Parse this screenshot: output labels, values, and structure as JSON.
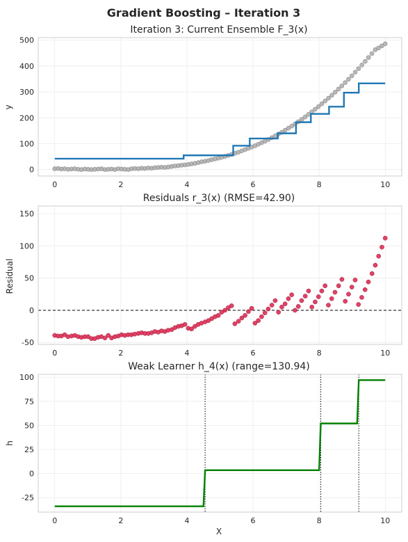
{
  "figure": {
    "suptitle": "Gradient Boosting – Iteration 3"
  },
  "chart_data": [
    {
      "type": "line",
      "title": "Iteration 3: Current Ensemble F_3(x)",
      "xlabel": "",
      "ylabel": "y",
      "xlim": [
        -0.5,
        10.5
      ],
      "ylim": [
        -25,
        510
      ],
      "xticks": [
        0,
        2,
        4,
        6,
        8,
        10
      ],
      "yticks": [
        0,
        100,
        200,
        300,
        400,
        500
      ],
      "grid": true,
      "legend": "none",
      "colors": {
        "points": "#a6a6a6",
        "line": "#1f77b4"
      },
      "data_points": {
        "x_start": 0,
        "x_end": 10,
        "count": 100,
        "y": [
          3,
          4,
          2,
          3,
          1,
          2,
          3,
          1,
          0,
          2,
          1,
          0,
          1,
          2,
          3,
          0,
          1,
          2,
          0,
          3,
          2,
          1,
          0,
          3,
          4,
          3,
          5,
          4,
          6,
          5,
          7,
          8,
          9,
          8,
          10,
          12,
          14,
          15,
          17,
          18,
          20,
          22,
          24,
          27,
          30,
          32,
          35,
          38,
          41,
          44,
          47,
          51,
          55,
          59,
          63,
          67,
          72,
          77,
          82,
          87,
          92,
          98,
          104,
          110,
          116,
          123,
          130,
          137,
          144,
          152,
          160,
          168,
          176,
          185,
          194,
          203,
          213,
          223,
          233,
          243,
          254,
          265,
          276,
          287,
          299,
          311,
          323,
          336,
          349,
          362,
          376,
          390,
          404,
          418,
          433,
          448,
          463,
          470,
          478,
          486
        ]
      },
      "series": [
        {
          "steps": [
            [
              0,
              42
            ],
            [
              3.9,
              42
            ],
            [
              3.9,
              55
            ],
            [
              5.4,
              55
            ],
            [
              5.4,
              92
            ],
            [
              5.9,
              92
            ],
            [
              5.9,
              120
            ],
            [
              6.75,
              120
            ],
            [
              6.75,
              140
            ],
            [
              7.3,
              140
            ],
            [
              7.3,
              183
            ],
            [
              7.75,
              183
            ],
            [
              7.75,
              215
            ],
            [
              8.3,
              215
            ],
            [
              8.3,
              243
            ],
            [
              8.75,
              243
            ],
            [
              8.75,
              297
            ],
            [
              9.2,
              297
            ],
            [
              9.2,
              333
            ],
            [
              10,
              333
            ]
          ]
        }
      ]
    },
    {
      "type": "scatter",
      "title": "Residuals r_3(x)  (RMSE=42.90)",
      "xlabel": "",
      "ylabel": "Residual",
      "xlim": [
        -0.5,
        10.5
      ],
      "ylim": [
        -53,
        162
      ],
      "xticks": [
        0,
        2,
        4,
        6,
        8,
        10
      ],
      "yticks": [
        -50,
        0,
        50,
        100,
        150
      ],
      "grid": true,
      "reference_line": 0,
      "colors": {
        "points": "#dc2e55",
        "reference": "#000000"
      },
      "points": [
        [
          0.0,
          -39
        ],
        [
          0.1,
          -40
        ],
        [
          0.2,
          -40
        ],
        [
          0.3,
          -38
        ],
        [
          0.4,
          -41
        ],
        [
          0.51,
          -40
        ],
        [
          0.61,
          -39
        ],
        [
          0.71,
          -41
        ],
        [
          0.81,
          -42
        ],
        [
          0.91,
          -41
        ],
        [
          1.01,
          -41
        ],
        [
          1.11,
          -44
        ],
        [
          1.21,
          -44
        ],
        [
          1.31,
          -42
        ],
        [
          1.41,
          -41
        ],
        [
          1.52,
          -43
        ],
        [
          1.62,
          -39
        ],
        [
          1.72,
          -43
        ],
        [
          1.82,
          -41
        ],
        [
          1.92,
          -40
        ],
        [
          2.02,
          -38
        ],
        [
          2.12,
          -39
        ],
        [
          2.22,
          -38
        ],
        [
          2.32,
          -38
        ],
        [
          2.42,
          -37
        ],
        [
          2.53,
          -36
        ],
        [
          2.63,
          -35
        ],
        [
          2.73,
          -36
        ],
        [
          2.83,
          -36
        ],
        [
          2.93,
          -35
        ],
        [
          3.03,
          -33
        ],
        [
          3.13,
          -34
        ],
        [
          3.23,
          -32
        ],
        [
          3.33,
          -33
        ],
        [
          3.43,
          -31
        ],
        [
          3.54,
          -30
        ],
        [
          3.64,
          -27
        ],
        [
          3.74,
          -25
        ],
        [
          3.84,
          -24
        ],
        [
          3.94,
          -22
        ],
        [
          4.04,
          -28
        ],
        [
          4.14,
          -29
        ],
        [
          4.24,
          -25
        ],
        [
          4.34,
          -22
        ],
        [
          4.44,
          -20
        ],
        [
          4.55,
          -18
        ],
        [
          4.65,
          -16
        ],
        [
          4.75,
          -13
        ],
        [
          4.85,
          -10
        ],
        [
          4.95,
          -8
        ],
        [
          5.05,
          -3
        ],
        [
          5.15,
          0
        ],
        [
          5.25,
          4
        ],
        [
          5.35,
          7
        ],
        [
          5.45,
          -21
        ],
        [
          5.56,
          -17
        ],
        [
          5.66,
          -12
        ],
        [
          5.76,
          -8
        ],
        [
          5.86,
          -2
        ],
        [
          5.96,
          3
        ],
        [
          6.06,
          -20
        ],
        [
          6.16,
          -16
        ],
        [
          6.26,
          -10
        ],
        [
          6.36,
          -4
        ],
        [
          6.46,
          2
        ],
        [
          6.57,
          8
        ],
        [
          6.67,
          15
        ],
        [
          6.77,
          -3
        ],
        [
          6.87,
          5
        ],
        [
          6.97,
          10
        ],
        [
          7.07,
          18
        ],
        [
          7.17,
          24
        ],
        [
          7.27,
          0
        ],
        [
          7.37,
          6
        ],
        [
          7.47,
          15
        ],
        [
          7.58,
          22
        ],
        [
          7.68,
          30
        ],
        [
          7.78,
          5
        ],
        [
          7.88,
          13
        ],
        [
          7.98,
          21
        ],
        [
          8.08,
          30
        ],
        [
          8.18,
          38
        ],
        [
          8.28,
          8
        ],
        [
          8.38,
          18
        ],
        [
          8.48,
          28
        ],
        [
          8.59,
          38
        ],
        [
          8.69,
          48
        ],
        [
          8.79,
          14
        ],
        [
          8.89,
          25
        ],
        [
          8.99,
          36
        ],
        [
          9.09,
          47
        ],
        [
          9.19,
          9
        ],
        [
          9.29,
          20
        ],
        [
          9.39,
          32
        ],
        [
          9.49,
          44
        ],
        [
          9.6,
          57
        ],
        [
          9.7,
          70
        ],
        [
          9.8,
          84
        ],
        [
          9.9,
          98
        ],
        [
          10.0,
          112
        ]
      ]
    },
    {
      "type": "line",
      "title": "Weak Learner h_4(x)  (range=130.94)",
      "xlabel": "X",
      "ylabel": "h",
      "xlim": [
        -0.5,
        10.5
      ],
      "ylim": [
        -40,
        103
      ],
      "xticks": [
        0,
        2,
        4,
        6,
        8,
        10
      ],
      "yticks": [
        -25,
        0,
        25,
        50,
        75,
        100
      ],
      "grid": true,
      "split_lines": [
        4.55,
        8.05,
        9.2
      ],
      "colors": {
        "line": "#008000",
        "splits": "#000000"
      },
      "series": [
        {
          "steps": [
            [
              0,
              -34
            ],
            [
              4.5,
              -34
            ],
            [
              4.55,
              3.5
            ],
            [
              8.0,
              3.5
            ],
            [
              8.05,
              52
            ],
            [
              9.15,
              52
            ],
            [
              9.2,
              97
            ],
            [
              10,
              97
            ]
          ]
        }
      ]
    }
  ]
}
